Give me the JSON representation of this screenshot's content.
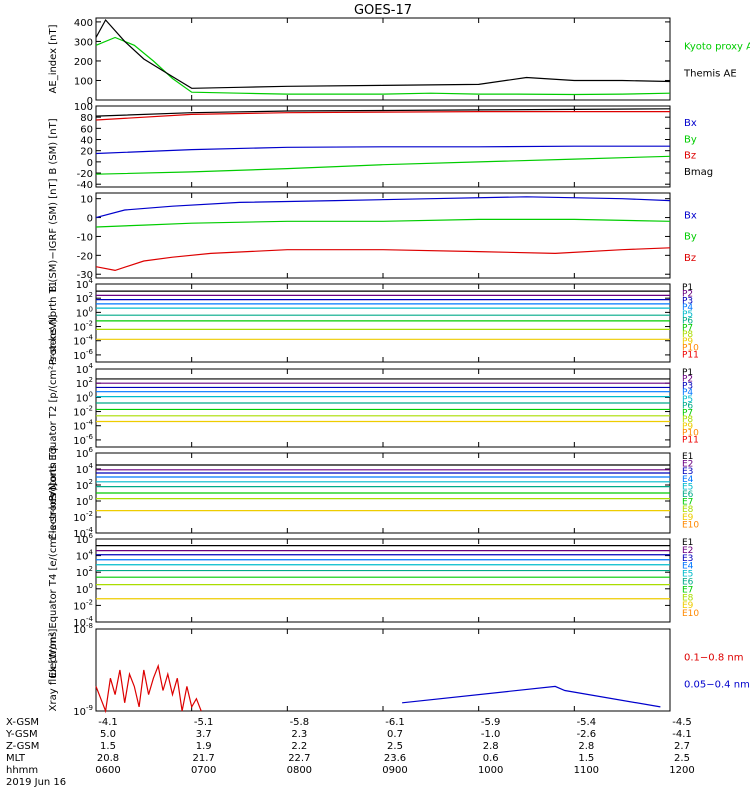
{
  "title": "GOES-17",
  "x_labels": [
    "0600",
    "0700",
    "0800",
    "0900",
    "1000",
    "1100",
    "1200"
  ],
  "orbit_table": {
    "row_labels": [
      "X-GSM",
      "Y-GSM",
      "Z-GSM",
      "MLT",
      "hhmm"
    ],
    "rows": [
      [
        "-4.1",
        "-5.1",
        "-5.8",
        "-6.1",
        "-5.9",
        "-5.4",
        "-4.5"
      ],
      [
        "5.0",
        "3.7",
        "2.3",
        "0.7",
        "-1.0",
        "-2.6",
        "-4.1"
      ],
      [
        "1.5",
        "1.9",
        "2.2",
        "2.5",
        "2.8",
        "2.8",
        "2.7"
      ],
      [
        "20.8",
        "21.7",
        "22.7",
        "23.6",
        "0.6",
        "1.5",
        "2.5"
      ],
      [
        "0600",
        "0700",
        "0800",
        "0900",
        "1000",
        "1100",
        "1200"
      ]
    ],
    "date": "2019 Jun 16"
  },
  "colors": {
    "black": "#000000",
    "red": "#dd0000",
    "green": "#00cc00",
    "blue": "#0000cc",
    "p_channels": [
      "#000000",
      "#6a0080",
      "#0000bb",
      "#0077ff",
      "#00bbcc",
      "#00aa88",
      "#00cc00",
      "#aadd00",
      "#eecc00",
      "#ff8800",
      "#ee0000",
      "#880000"
    ]
  },
  "chart_data": [
    {
      "type": "line",
      "ylabel": "AE_index [nT]",
      "ylim": [
        0,
        420
      ],
      "yticks": [
        "0",
        "100",
        "200",
        "300",
        "400"
      ],
      "x_range": [
        6,
        12
      ],
      "legend": [
        "Kyoto proxy AE",
        "Themis AE"
      ],
      "series": [
        {
          "name": "Kyoto proxy AE",
          "color": "green",
          "x": [
            6.0,
            6.2,
            6.4,
            6.6,
            6.8,
            7.0,
            7.5,
            8.0,
            9.0,
            9.5,
            10.0,
            10.4,
            11.0,
            11.5,
            12.0
          ],
          "values": [
            280,
            320,
            280,
            200,
            110,
            40,
            35,
            30,
            30,
            35,
            30,
            30,
            28,
            30,
            35
          ]
        },
        {
          "name": "Themis AE",
          "color": "black",
          "x": [
            6.0,
            6.1,
            6.3,
            6.5,
            6.8,
            7.0,
            7.5,
            8.0,
            9.0,
            10.0,
            10.5,
            11.0,
            11.5,
            12.0
          ],
          "values": [
            320,
            410,
            300,
            210,
            120,
            60,
            65,
            70,
            75,
            80,
            115,
            100,
            100,
            95
          ]
        }
      ]
    },
    {
      "type": "line",
      "ylabel": "B (SM) [nT]",
      "ylim": [
        -45,
        100
      ],
      "yticks": [
        "-40",
        "-20",
        "0",
        "20",
        "40",
        "60",
        "80",
        "100"
      ],
      "x_range": [
        6,
        12
      ],
      "legend": [
        "Bx",
        "By",
        "Bz",
        "Bmag"
      ],
      "series": [
        {
          "name": "Bx",
          "color": "blue",
          "x": [
            6,
            7,
            8,
            9,
            10,
            11,
            12
          ],
          "values": [
            15,
            22,
            26,
            27,
            27,
            28,
            28
          ]
        },
        {
          "name": "By",
          "color": "green",
          "x": [
            6,
            7,
            8,
            9,
            10,
            11,
            12
          ],
          "values": [
            -22,
            -18,
            -12,
            -5,
            0,
            5,
            10
          ]
        },
        {
          "name": "Bz",
          "color": "red",
          "x": [
            6,
            7,
            8,
            9,
            10,
            11,
            12
          ],
          "values": [
            75,
            85,
            88,
            89,
            90,
            90,
            90
          ]
        },
        {
          "name": "Bmag",
          "color": "black",
          "x": [
            6,
            7,
            8,
            9,
            10,
            11,
            12
          ],
          "values": [
            82,
            88,
            91,
            92,
            93,
            94,
            95
          ]
        }
      ]
    },
    {
      "type": "line",
      "ylabel": "B (SM)−IGRF (SM) [nT]",
      "ylim": [
        -32,
        13
      ],
      "yticks": [
        "-30",
        "-20",
        "-10",
        "0",
        "10"
      ],
      "x_range": [
        6,
        12
      ],
      "legend": [
        "Bx",
        "By",
        "Bz"
      ],
      "series": [
        {
          "name": "Bx",
          "color": "blue",
          "x": [
            6,
            6.3,
            6.8,
            7.5,
            8.5,
            9.5,
            10.5,
            11.5,
            12
          ],
          "values": [
            0,
            4,
            6,
            8,
            9,
            10,
            11,
            10,
            9
          ]
        },
        {
          "name": "By",
          "color": "green",
          "x": [
            6,
            6.5,
            7,
            8,
            9,
            10,
            11,
            12
          ],
          "values": [
            -5,
            -4,
            -3,
            -2,
            -2,
            -1,
            -1,
            -2
          ]
        },
        {
          "name": "Bz",
          "color": "red",
          "x": [
            6,
            6.2,
            6.5,
            6.8,
            7.2,
            8,
            9,
            10,
            10.8,
            11.5,
            12
          ],
          "values": [
            -26,
            -28,
            -23,
            -21,
            -19,
            -17,
            -17,
            -18,
            -19,
            -17,
            -16
          ]
        }
      ]
    },
    {
      "type": "line",
      "log": true,
      "ylabel": "Protons North T1",
      "ylog_range": [
        -7,
        4
      ],
      "yticks": [
        "10^4",
        "10^2",
        "10^0",
        "10^-2",
        "10^-4",
        "10^-6"
      ],
      "x_range": [
        6,
        12
      ],
      "legend": [
        "P1",
        "P2",
        "P3",
        "P4",
        "P5",
        "P6",
        "P7",
        "P8",
        "P9",
        "P10",
        "P11"
      ],
      "levels": [
        3.0,
        2.4,
        1.8,
        1.2,
        0.6,
        -0.4,
        -1.2,
        -2.4,
        -3.8
      ]
    },
    {
      "type": "line",
      "log": true,
      "ylabel": "Protons Equator T2 [p/(cm²-s-sr-keV)]",
      "ylog_range": [
        -7,
        4
      ],
      "yticks": [
        "10^4",
        "10^2",
        "10^0",
        "10^-2",
        "10^-4",
        "10^-6"
      ],
      "x_range": [
        6,
        12
      ],
      "legend": [
        "P1",
        "P2",
        "P3",
        "P4",
        "P5",
        "P6",
        "P7",
        "P8",
        "P9",
        "P10",
        "P11"
      ],
      "levels": [
        2.6,
        2.0,
        1.4,
        0.8,
        0.1,
        -0.8,
        -1.7,
        -2.6,
        -3.4
      ]
    },
    {
      "type": "line",
      "log": true,
      "ylabel": "Electrons North T3",
      "ylog_range": [
        -4,
        6
      ],
      "yticks": [
        "10^6",
        "10^4",
        "10^2",
        "10^0",
        "10^-2",
        "10^-4"
      ],
      "x_range": [
        6,
        12
      ],
      "legend": [
        "E1",
        "E2",
        "E3",
        "E4",
        "E5",
        "E6",
        "E7",
        "E8",
        "E9",
        "E10"
      ],
      "levels": [
        4.5,
        3.9,
        3.5,
        3.0,
        2.4,
        1.8,
        1.0,
        0.3,
        -1.2
      ]
    },
    {
      "type": "line",
      "log": true,
      "ylabel": "Electrons Equator T4 [e/(cm²-s-sr-keV)]",
      "ylog_range": [
        -4,
        6
      ],
      "yticks": [
        "10^6",
        "10^4",
        "10^2",
        "10^0",
        "10^-2",
        "10^-4"
      ],
      "x_range": [
        6,
        12
      ],
      "legend": [
        "E1",
        "E2",
        "E3",
        "E4",
        "E5",
        "E6",
        "E7",
        "E8",
        "E9",
        "E10"
      ],
      "levels": [
        5.2,
        4.6,
        4.1,
        3.5,
        2.9,
        2.2,
        1.4,
        0.5,
        -1.2
      ]
    },
    {
      "type": "line",
      "log": true,
      "ylabel": "Xray flux [W/m²]",
      "ylog_range": [
        -9,
        -8
      ],
      "yticks": [
        "10^-8",
        "10^-9"
      ],
      "x_range": [
        6,
        12
      ],
      "legend": [
        "0.1−0.8 nm",
        "0.05−0.4 nm"
      ],
      "series": [
        {
          "name": "0.1−0.8 nm",
          "color": "red",
          "x": [
            6.0,
            6.05,
            6.1,
            6.15,
            6.2,
            6.25,
            6.3,
            6.35,
            6.4,
            6.45,
            6.5,
            6.55,
            6.6,
            6.65,
            6.7,
            6.75,
            6.8,
            6.85,
            6.9,
            6.95,
            7.0,
            7.05,
            7.1
          ],
          "values": [
            -8.7,
            -8.85,
            -9.0,
            -8.6,
            -8.8,
            -8.5,
            -8.9,
            -8.55,
            -8.7,
            -8.95,
            -8.5,
            -8.8,
            -8.6,
            -8.45,
            -8.75,
            -8.55,
            -8.8,
            -8.6,
            -9.0,
            -8.7,
            -8.95,
            -8.85,
            -9.0
          ]
        },
        {
          "name": "0.05−0.4 nm",
          "color": "blue",
          "x": [
            9.2,
            10.8,
            10.9,
            11.9
          ],
          "values": [
            -8.9,
            -8.7,
            -8.75,
            -8.95
          ]
        }
      ]
    }
  ]
}
